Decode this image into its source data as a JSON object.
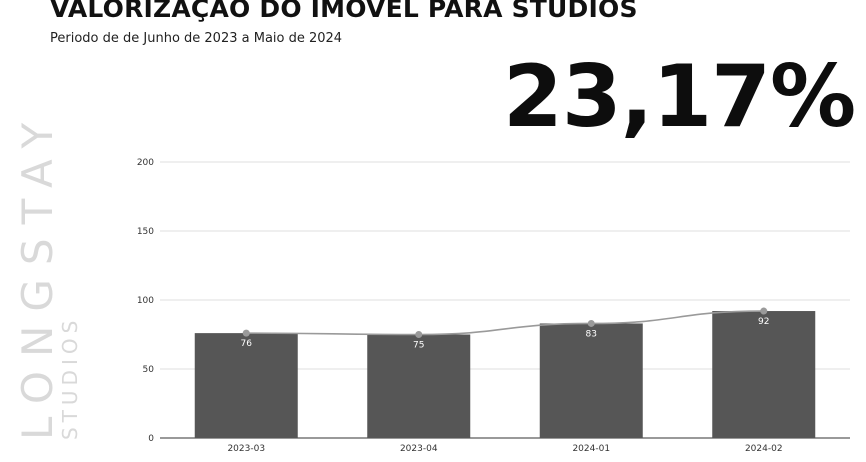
{
  "header": {
    "title": "VALORIZAÇÃO DO IMÓVEL PARA STUDIOS",
    "subtitle": "Periodo de de Junho de 2023 a Maio de 2024",
    "highlight_value": "23,17%"
  },
  "logo": {
    "main_text": "LONGSTAY",
    "sub_text": "STUDIOS"
  },
  "colors": {
    "bar": "#565656",
    "line": "#9a9a9a",
    "grid": "#d4d4d4",
    "logo": "#d9d9d9"
  },
  "chart_data": {
    "type": "bar",
    "categories": [
      "2023-03",
      "2023-04",
      "2024-01",
      "2024-02"
    ],
    "series": [
      {
        "values": [
          76,
          75,
          83,
          92
        ]
      }
    ],
    "trend_line": [
      76,
      75,
      83,
      92
    ],
    "data_labels": [
      "76",
      "75",
      "83",
      "92"
    ],
    "ylim": [
      0,
      200
    ],
    "yticks": [
      0,
      50,
      100,
      150,
      200
    ],
    "grid": true,
    "legend": "none"
  }
}
